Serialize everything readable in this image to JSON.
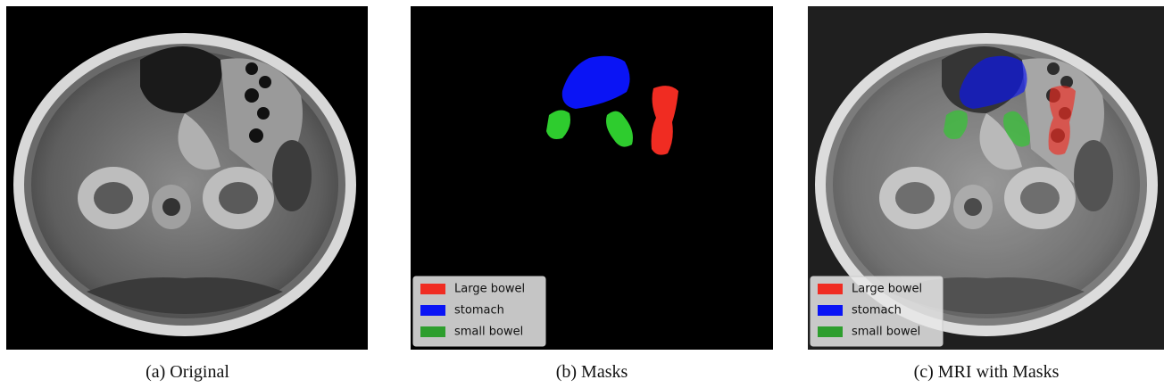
{
  "panels": [
    {
      "caption": "(a) Original"
    },
    {
      "caption": "(b) Masks",
      "legend": [
        "Large bowel",
        "stomach",
        "small bowel"
      ]
    },
    {
      "caption": "(c) MRI with Masks",
      "legend": [
        "Large bowel",
        "stomach",
        "small bowel"
      ]
    }
  ]
}
